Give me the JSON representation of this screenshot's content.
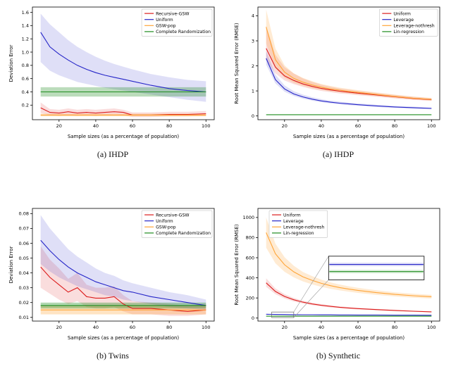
{
  "chart_data": [
    {
      "type": "line",
      "caption": "(a) IHDP",
      "xlabel": "Sample sizes (as a percentage of population)",
      "ylabel": "Deviation Error",
      "xlim": [
        5.5,
        104.5
      ],
      "ylim": [
        -0.02,
        1.68
      ],
      "xticks": [
        "20",
        "40",
        "60",
        "80",
        "100"
      ],
      "yticks": [
        "0.2",
        "0.4",
        "0.6",
        "0.8",
        "1.0",
        "1.2",
        "1.4",
        "1.6"
      ],
      "legend_pos": "upper right",
      "grid": false,
      "x": [
        10,
        15,
        20,
        25,
        30,
        35,
        40,
        45,
        50,
        55,
        60,
        70,
        80,
        90,
        100
      ],
      "series": [
        {
          "name": "Recursive-GSW",
          "color": "#dc1c1c",
          "band_opacity": 0.15,
          "values": [
            0.16,
            0.09,
            0.08,
            0.1,
            0.08,
            0.09,
            0.08,
            0.09,
            0.1,
            0.09,
            0.05,
            0.05,
            0.06,
            0.06,
            0.07
          ],
          "lo": [
            0.08,
            0.05,
            0.04,
            0.05,
            0.04,
            0.05,
            0.04,
            0.05,
            0.06,
            0.05,
            0.02,
            0.02,
            0.03,
            0.03,
            0.04
          ],
          "hi": [
            0.24,
            0.14,
            0.13,
            0.15,
            0.13,
            0.14,
            0.13,
            0.14,
            0.15,
            0.13,
            0.09,
            0.09,
            0.1,
            0.1,
            0.11
          ]
        },
        {
          "name": "Uniform",
          "color": "#2525c8",
          "band_opacity": 0.15,
          "values": [
            1.3,
            1.08,
            0.97,
            0.88,
            0.8,
            0.74,
            0.69,
            0.65,
            0.62,
            0.59,
            0.56,
            0.5,
            0.45,
            0.42,
            0.4
          ],
          "lo": [
            0.85,
            0.72,
            0.65,
            0.6,
            0.55,
            0.52,
            0.49,
            0.46,
            0.44,
            0.42,
            0.4,
            0.36,
            0.32,
            0.28,
            0.25
          ],
          "hi": [
            1.58,
            1.42,
            1.3,
            1.18,
            1.08,
            1.0,
            0.93,
            0.87,
            0.82,
            0.78,
            0.74,
            0.67,
            0.62,
            0.58,
            0.56
          ]
        },
        {
          "name": "GSW-pop",
          "color": "#ffa538",
          "band_opacity": 0.3,
          "values": [
            0.05,
            0.05,
            0.05,
            0.05,
            0.05,
            0.05,
            0.05,
            0.05,
            0.05,
            0.05,
            0.05,
            0.05,
            0.05,
            0.05,
            0.05
          ],
          "lo": [
            0.03,
            0.03,
            0.03,
            0.03,
            0.03,
            0.03,
            0.03,
            0.03,
            0.03,
            0.03,
            0.03,
            0.03,
            0.03,
            0.03,
            0.03
          ],
          "hi": [
            0.07,
            0.07,
            0.07,
            0.07,
            0.07,
            0.07,
            0.07,
            0.07,
            0.07,
            0.07,
            0.07,
            0.07,
            0.07,
            0.07,
            0.07
          ]
        },
        {
          "name": "Complete Randomization",
          "color": "#1e8c1e",
          "band_opacity": 0.3,
          "values": [
            0.4,
            0.4,
            0.4,
            0.4,
            0.4,
            0.4,
            0.4,
            0.4,
            0.4,
            0.4,
            0.4,
            0.4,
            0.4,
            0.4,
            0.4
          ],
          "lo": [
            0.33,
            0.33,
            0.33,
            0.33,
            0.33,
            0.33,
            0.33,
            0.33,
            0.33,
            0.33,
            0.33,
            0.33,
            0.33,
            0.33,
            0.33
          ],
          "hi": [
            0.47,
            0.47,
            0.47,
            0.47,
            0.47,
            0.47,
            0.47,
            0.47,
            0.47,
            0.47,
            0.47,
            0.47,
            0.47,
            0.47,
            0.47
          ]
        }
      ]
    },
    {
      "type": "line",
      "caption": "(a) IHDP",
      "xlabel": "Sample sizes (as a percentage of population)",
      "ylabel": "Root Mean Squared Error (RMSE)",
      "xlim": [
        5.5,
        104.5
      ],
      "ylim": [
        -0.15,
        4.35
      ],
      "xticks": [
        "20",
        "40",
        "60",
        "80",
        "100"
      ],
      "yticks": [
        "0",
        "1",
        "2",
        "3",
        "4"
      ],
      "legend_pos": "upper right",
      "grid": false,
      "x": [
        10,
        15,
        20,
        25,
        30,
        35,
        40,
        45,
        50,
        55,
        60,
        70,
        80,
        90,
        100
      ],
      "series": [
        {
          "name": "Uniform",
          "color": "#dc1c1c",
          "band_opacity": 0.15,
          "values": [
            2.7,
            1.95,
            1.6,
            1.42,
            1.28,
            1.18,
            1.1,
            1.04,
            0.99,
            0.95,
            0.91,
            0.84,
            0.77,
            0.7,
            0.65
          ],
          "lo": [
            2.25,
            1.7,
            1.42,
            1.27,
            1.16,
            1.07,
            1.0,
            0.95,
            0.9,
            0.87,
            0.83,
            0.77,
            0.7,
            0.64,
            0.6
          ],
          "hi": [
            3.6,
            2.45,
            1.95,
            1.7,
            1.5,
            1.36,
            1.25,
            1.17,
            1.1,
            1.05,
            1.0,
            0.92,
            0.84,
            0.77,
            0.71
          ]
        },
        {
          "name": "Leverage",
          "color": "#2525c8",
          "band_opacity": 0.15,
          "values": [
            2.3,
            1.45,
            1.08,
            0.88,
            0.76,
            0.67,
            0.6,
            0.55,
            0.51,
            0.48,
            0.45,
            0.4,
            0.36,
            0.33,
            0.3
          ],
          "lo": [
            2.05,
            1.3,
            0.97,
            0.8,
            0.69,
            0.61,
            0.55,
            0.5,
            0.46,
            0.43,
            0.41,
            0.36,
            0.32,
            0.29,
            0.27
          ],
          "hi": [
            2.6,
            1.65,
            1.22,
            0.99,
            0.85,
            0.75,
            0.67,
            0.61,
            0.57,
            0.53,
            0.5,
            0.45,
            0.4,
            0.37,
            0.34
          ]
        },
        {
          "name": "Leverage-nothresh",
          "color": "#ffa538",
          "band_opacity": 0.22,
          "values": [
            3.55,
            2.25,
            1.75,
            1.5,
            1.35,
            1.24,
            1.15,
            1.08,
            1.03,
            0.98,
            0.94,
            0.86,
            0.78,
            0.71,
            0.66
          ],
          "lo": [
            2.9,
            1.9,
            1.52,
            1.32,
            1.2,
            1.11,
            1.04,
            0.98,
            0.94,
            0.9,
            0.86,
            0.79,
            0.72,
            0.66,
            0.61
          ],
          "hi": [
            4.25,
            2.7,
            2.02,
            1.7,
            1.52,
            1.39,
            1.28,
            1.2,
            1.13,
            1.08,
            1.03,
            0.94,
            0.85,
            0.77,
            0.72
          ]
        },
        {
          "name": "Lin-regression",
          "color": "#1e8c1e",
          "values": [
            0.05,
            0.05,
            0.05,
            0.05,
            0.05,
            0.05,
            0.05,
            0.05,
            0.05,
            0.05,
            0.05,
            0.05,
            0.05,
            0.05,
            0.05
          ]
        }
      ]
    },
    {
      "type": "line",
      "caption": "(b) Twins",
      "xlabel": "Sample sizes (as a percentage of population)",
      "ylabel": "Deviation Error",
      "xlim": [
        5.5,
        104.5
      ],
      "ylim": [
        0.0075,
        0.0835
      ],
      "xticks": [
        "20",
        "40",
        "60",
        "80",
        "100"
      ],
      "yticks": [
        "0.01",
        "0.02",
        "0.03",
        "0.04",
        "0.05",
        "0.06",
        "0.07",
        "0.08"
      ],
      "legend_pos": "upper right",
      "grid": false,
      "x": [
        10,
        15,
        20,
        25,
        30,
        35,
        40,
        45,
        50,
        55,
        60,
        70,
        80,
        90,
        100
      ],
      "series": [
        {
          "name": "Recursive-GSW",
          "color": "#dc1c1c",
          "band_opacity": 0.15,
          "values": [
            0.044,
            0.037,
            0.032,
            0.027,
            0.03,
            0.024,
            0.023,
            0.023,
            0.024,
            0.019,
            0.016,
            0.016,
            0.015,
            0.014,
            0.015
          ],
          "lo": [
            0.03,
            0.026,
            0.022,
            0.019,
            0.021,
            0.017,
            0.016,
            0.016,
            0.017,
            0.014,
            0.012,
            0.012,
            0.011,
            0.011,
            0.012
          ],
          "hi": [
            0.058,
            0.049,
            0.043,
            0.036,
            0.04,
            0.032,
            0.03,
            0.03,
            0.031,
            0.025,
            0.021,
            0.02,
            0.019,
            0.018,
            0.019
          ]
        },
        {
          "name": "Uniform",
          "color": "#2525c8",
          "band_opacity": 0.15,
          "values": [
            0.062,
            0.055,
            0.049,
            0.044,
            0.04,
            0.037,
            0.034,
            0.032,
            0.03,
            0.028,
            0.027,
            0.024,
            0.022,
            0.02,
            0.018
          ],
          "lo": [
            0.046,
            0.041,
            0.037,
            0.034,
            0.031,
            0.029,
            0.027,
            0.025,
            0.024,
            0.022,
            0.021,
            0.019,
            0.017,
            0.016,
            0.015
          ],
          "hi": [
            0.079,
            0.07,
            0.063,
            0.056,
            0.051,
            0.047,
            0.043,
            0.04,
            0.038,
            0.035,
            0.033,
            0.03,
            0.027,
            0.025,
            0.022
          ]
        },
        {
          "name": "GSW-pop",
          "color": "#ffa538",
          "band_opacity": 0.3,
          "values": [
            0.015,
            0.015,
            0.015,
            0.015,
            0.015,
            0.015,
            0.015,
            0.015,
            0.015,
            0.015,
            0.015,
            0.015,
            0.015,
            0.015,
            0.015
          ],
          "lo": [
            0.012,
            0.012,
            0.012,
            0.012,
            0.012,
            0.012,
            0.012,
            0.012,
            0.012,
            0.012,
            0.012,
            0.012,
            0.012,
            0.012,
            0.012
          ],
          "hi": [
            0.018,
            0.018,
            0.018,
            0.018,
            0.018,
            0.018,
            0.018,
            0.018,
            0.018,
            0.018,
            0.018,
            0.018,
            0.018,
            0.018,
            0.018
          ]
        },
        {
          "name": "Complete Randomization",
          "color": "#1e8c1e",
          "band_opacity": 0.35,
          "values": [
            0.018,
            0.018,
            0.018,
            0.018,
            0.018,
            0.018,
            0.018,
            0.018,
            0.018,
            0.018,
            0.018,
            0.018,
            0.018,
            0.018,
            0.018
          ],
          "lo": [
            0.016,
            0.016,
            0.016,
            0.016,
            0.016,
            0.016,
            0.016,
            0.016,
            0.016,
            0.016,
            0.016,
            0.016,
            0.016,
            0.016,
            0.016
          ],
          "hi": [
            0.02,
            0.02,
            0.02,
            0.02,
            0.02,
            0.02,
            0.02,
            0.02,
            0.02,
            0.02,
            0.02,
            0.02,
            0.02,
            0.02,
            0.02
          ]
        }
      ]
    },
    {
      "type": "line",
      "caption": "(b) Synthetic",
      "xlabel": "Sample sizes (as a percentage of population)",
      "ylabel": "Root Mean Squared Error (RMSE)",
      "xlim": [
        5.5,
        104.5
      ],
      "ylim": [
        -30,
        1090
      ],
      "xticks": [
        "20",
        "40",
        "60",
        "80",
        "100"
      ],
      "yticks": [
        "0",
        "200",
        "400",
        "600",
        "800",
        "1000"
      ],
      "legend_pos": "upper left",
      "grid": false,
      "x": [
        10,
        15,
        20,
        25,
        30,
        35,
        40,
        45,
        50,
        55,
        60,
        70,
        80,
        90,
        100
      ],
      "series": [
        {
          "name": "Uniform",
          "color": "#dc1c1c",
          "band_opacity": 0.15,
          "values": [
            350,
            265,
            215,
            182,
            158,
            140,
            127,
            116,
            107,
            100,
            94,
            84,
            76,
            68,
            62
          ],
          "lo": [
            310,
            238,
            194,
            165,
            144,
            128,
            116,
            106,
            98,
            92,
            86,
            77,
            70,
            63,
            57
          ],
          "hi": [
            395,
            295,
            238,
            200,
            173,
            153,
            139,
            127,
            117,
            109,
            102,
            92,
            83,
            74,
            68
          ]
        },
        {
          "name": "Leverage",
          "color": "#2525c8",
          "values": [
            38,
            36,
            35,
            34,
            33,
            33,
            32,
            32,
            31,
            31,
            30,
            30,
            29,
            29,
            28
          ]
        },
        {
          "name": "Leverage-nothresh",
          "color": "#ffa538",
          "band_opacity": 0.22,
          "values": [
            850,
            640,
            530,
            460,
            410,
            375,
            345,
            322,
            303,
            288,
            275,
            253,
            235,
            222,
            212
          ],
          "lo": [
            700,
            545,
            460,
            405,
            365,
            335,
            310,
            291,
            275,
            262,
            250,
            231,
            215,
            203,
            194
          ],
          "hi": [
            1000,
            740,
            605,
            520,
            458,
            417,
            382,
            355,
            333,
            316,
            301,
            276,
            256,
            242,
            231
          ]
        },
        {
          "name": "Lin-regression",
          "color": "#1e8c1e",
          "values": [
            18,
            18,
            18,
            18,
            18,
            18,
            18,
            18,
            18,
            18,
            18,
            18,
            18,
            18,
            18
          ]
        }
      ],
      "inset": {
        "source": {
          "x0": 13,
          "x1": 25,
          "y0": 5,
          "y1": 60
        },
        "box": {
          "x0": 44,
          "x1": 96,
          "y0": 380,
          "y1": 615
        },
        "lines": [
          {
            "name": "Leverage",
            "color": "#2525c8",
            "y_frac": 0.35
          },
          {
            "name": "Lin-regression",
            "color": "#1e8c1e",
            "y_frac": 0.65
          }
        ]
      }
    }
  ]
}
